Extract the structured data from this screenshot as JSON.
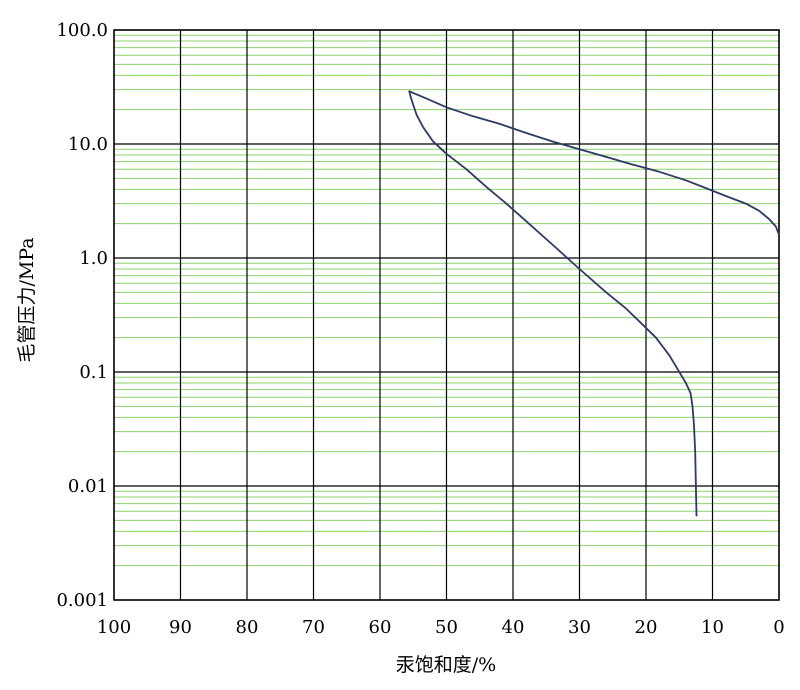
{
  "chart_data": {
    "type": "line",
    "title": "",
    "xlabel": "汞饱和度/%",
    "ylabel": "毛管压力/MPa",
    "x_ticks": [
      "100",
      "90",
      "80",
      "70",
      "60",
      "50",
      "40",
      "30",
      "20",
      "10",
      "0"
    ],
    "y_ticks": [
      "0.001",
      "0.01",
      "0.1",
      "1.0",
      "10.0",
      "100.0"
    ],
    "xlim": [
      100,
      0
    ],
    "ylim": [
      0.001,
      100
    ],
    "y_scale": "log",
    "x_reversed": true,
    "grid": true,
    "colors": {
      "curve": "#2e3a66",
      "major_grid": "#000000",
      "minor_grid": "#8cd46a"
    },
    "series": [
      {
        "name": "",
        "x": [
          12.4,
          12.5,
          12.6,
          12.8,
          13,
          13.3,
          14,
          15,
          16.5,
          18.5,
          20.5,
          23,
          26,
          30,
          34,
          38,
          41,
          44,
          47,
          50,
          52,
          53.5,
          54.5,
          55,
          55.4,
          55.6
        ],
        "y": [
          0.0055,
          0.01,
          0.02,
          0.035,
          0.05,
          0.065,
          0.08,
          0.1,
          0.14,
          0.2,
          0.26,
          0.36,
          0.5,
          0.8,
          1.3,
          2.1,
          3,
          4.2,
          6,
          8.2,
          10.5,
          14,
          18,
          22,
          26,
          29
        ]
      },
      {
        "name": "",
        "x": [
          55.6,
          53,
          50,
          46,
          42,
          38,
          34,
          30,
          26,
          22,
          18,
          14,
          11,
          8,
          5,
          3,
          1.5,
          0.5,
          0
        ],
        "y": [
          29,
          25,
          21,
          17.5,
          15,
          12.5,
          10.5,
          9,
          7.7,
          6.6,
          5.7,
          4.8,
          4.1,
          3.5,
          3,
          2.6,
          2.2,
          1.9,
          1.6
        ]
      }
    ]
  }
}
